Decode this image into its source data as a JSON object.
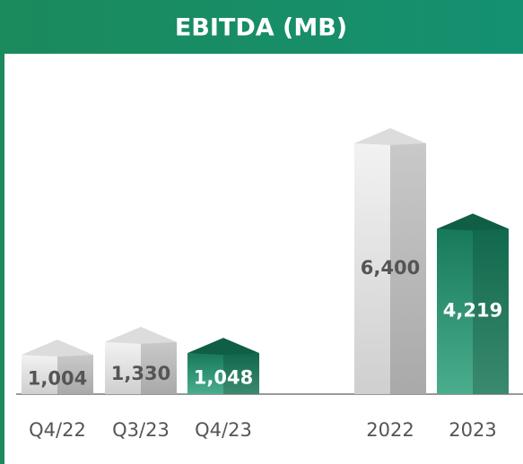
{
  "chart_data": {
    "type": "bar",
    "title": "EBITDA (MB)",
    "categories": [
      "Q4/22",
      "Q3/23",
      "Q4/23",
      "2022",
      "2023"
    ],
    "values": [
      1004,
      1330,
      1048,
      6400,
      4219
    ],
    "value_labels": [
      "1,004",
      "1,330",
      "1,048",
      "6,400",
      "4,219"
    ],
    "colors": [
      "#d9d9d9",
      "#d9d9d9",
      "#1e8c69",
      "#d9d9d9",
      "#1e8c69"
    ]
  }
}
